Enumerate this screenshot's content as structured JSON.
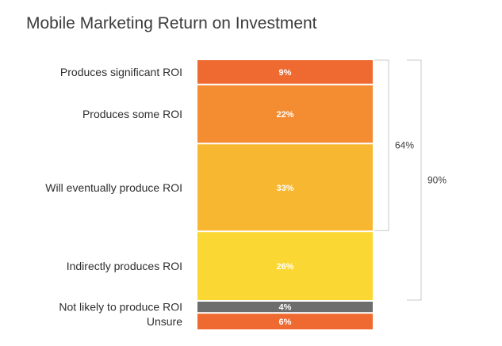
{
  "title": "Mobile Marketing Return on Investment",
  "chart_data": {
    "type": "bar",
    "stacked": true,
    "orientation": "vertical-stack",
    "title": "Mobile Marketing Return on Investment",
    "categories": [
      "Produces significant ROI",
      "Produces some ROI",
      "Will eventually produce ROI",
      "Indirectly produces ROI",
      "Not likely to produce ROI",
      "Unsure"
    ],
    "values": [
      9,
      22,
      33,
      26,
      4,
      6
    ],
    "value_labels": [
      "9%",
      "22%",
      "33%",
      "26%",
      "4%",
      "6%"
    ],
    "colors": [
      "#ef6a30",
      "#f48c32",
      "#f7b731",
      "#fbd733",
      "#6d6d6d",
      "#ef6a30"
    ],
    "brackets": [
      {
        "label": "64%",
        "from": 0,
        "to": 2
      },
      {
        "label": "90%",
        "from": 0,
        "to": 3
      }
    ]
  }
}
